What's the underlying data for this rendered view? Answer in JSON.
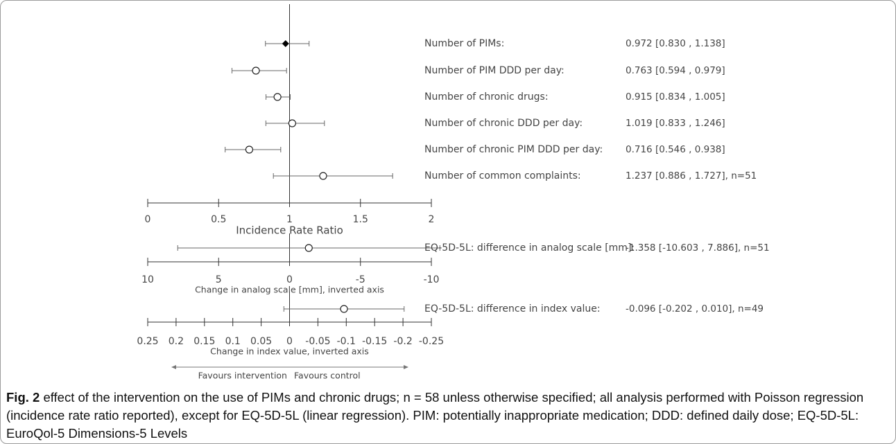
{
  "chart_data": {
    "type": "forest",
    "panels": [
      {
        "id": "irr",
        "xlabel": "Incidence Rate Ratio",
        "ticks": [
          0,
          0.5,
          1,
          1.5,
          2
        ],
        "tick_labels": [
          "0",
          "0.5",
          "1",
          "1.5",
          "2"
        ],
        "xlim": [
          0,
          2
        ],
        "inverted": false,
        "reference": 1,
        "rows": [
          {
            "label": "Number of PIMs:",
            "estimate": 0.972,
            "ci_low": 0.83,
            "ci_high": 1.138,
            "marker": "diamond",
            "ci_text": "0.972 [0.830 , 1.138]"
          },
          {
            "label": "Number of PIM DDD per day:",
            "estimate": 0.763,
            "ci_low": 0.594,
            "ci_high": 0.979,
            "marker": "circle",
            "ci_text": "0.763 [0.594 , 0.979]"
          },
          {
            "label": "Number of chronic drugs:",
            "estimate": 0.915,
            "ci_low": 0.834,
            "ci_high": 1.005,
            "marker": "circle",
            "ci_text": "0.915 [0.834 , 1.005]"
          },
          {
            "label": "Number of chronic DDD per day:",
            "estimate": 1.019,
            "ci_low": 0.833,
            "ci_high": 1.246,
            "marker": "circle",
            "ci_text": "1.019 [0.833 , 1.246]"
          },
          {
            "label": "Number of chronic PIM DDD per day:",
            "estimate": 0.716,
            "ci_low": 0.546,
            "ci_high": 0.938,
            "marker": "circle",
            "ci_text": "0.716 [0.546 , 0.938]"
          },
          {
            "label": "Number of common complaints:",
            "estimate": 1.237,
            "ci_low": 0.886,
            "ci_high": 1.727,
            "marker": "circle",
            "ci_text": "1.237 [0.886 , 1.727], n=51"
          }
        ]
      },
      {
        "id": "vas",
        "xlabel": "Change in analog scale [mm], inverted axis",
        "ticks": [
          10,
          5,
          0,
          -5,
          -10
        ],
        "tick_labels": [
          "10",
          "5",
          "0",
          "-5",
          "-10"
        ],
        "xlim": [
          10,
          -10
        ],
        "inverted": true,
        "reference": 0,
        "rows": [
          {
            "label": "EQ-5D-5L: difference in analog scale [mm]:",
            "estimate": -1.358,
            "ci_low": -10.603,
            "ci_high": 7.886,
            "marker": "circle",
            "ci_text": "-1.358 [-10.603 , 7.886], n=51"
          }
        ]
      },
      {
        "id": "index",
        "xlabel": "Change in index value, inverted axis",
        "ticks": [
          0.25,
          0.2,
          0.15,
          0.1,
          0.05,
          0,
          -0.05,
          -0.1,
          -0.15,
          -0.2,
          -0.25
        ],
        "tick_labels": [
          "0.25",
          "0.2",
          "0.15",
          "0.1",
          "0.05",
          "0",
          "-0.05",
          "-0.1",
          "-0.15",
          "-0.2",
          "-0.25"
        ],
        "xlim": [
          0.25,
          -0.25
        ],
        "inverted": true,
        "reference": 0,
        "rows": [
          {
            "label": "EQ-5D-5L: difference in index value:",
            "estimate": -0.096,
            "ci_low": -0.202,
            "ci_high": 0.01,
            "marker": "circle",
            "ci_text": "-0.096 [-0.202 , 0.010], n=49"
          }
        ]
      }
    ],
    "direction_labels": {
      "left": "Favours intervention",
      "right": "Favours control"
    }
  },
  "caption": {
    "label": "Fig. 2",
    "text": " effect of the intervention on the use of PIMs and chronic drugs; n = 58 unless otherwise specified; all analysis performed with Poisson regression (incidence rate ratio reported), except for EQ-5D-5L (linear regression). PIM: potentially inappropriate medication; DDD: defined daily dose; EQ-5D-5L: EuroQol-5 Dimensions-5 Levels"
  },
  "colors": {
    "axis": "#333333",
    "marker_fill_diamond": "#000000",
    "text": "#444444"
  }
}
